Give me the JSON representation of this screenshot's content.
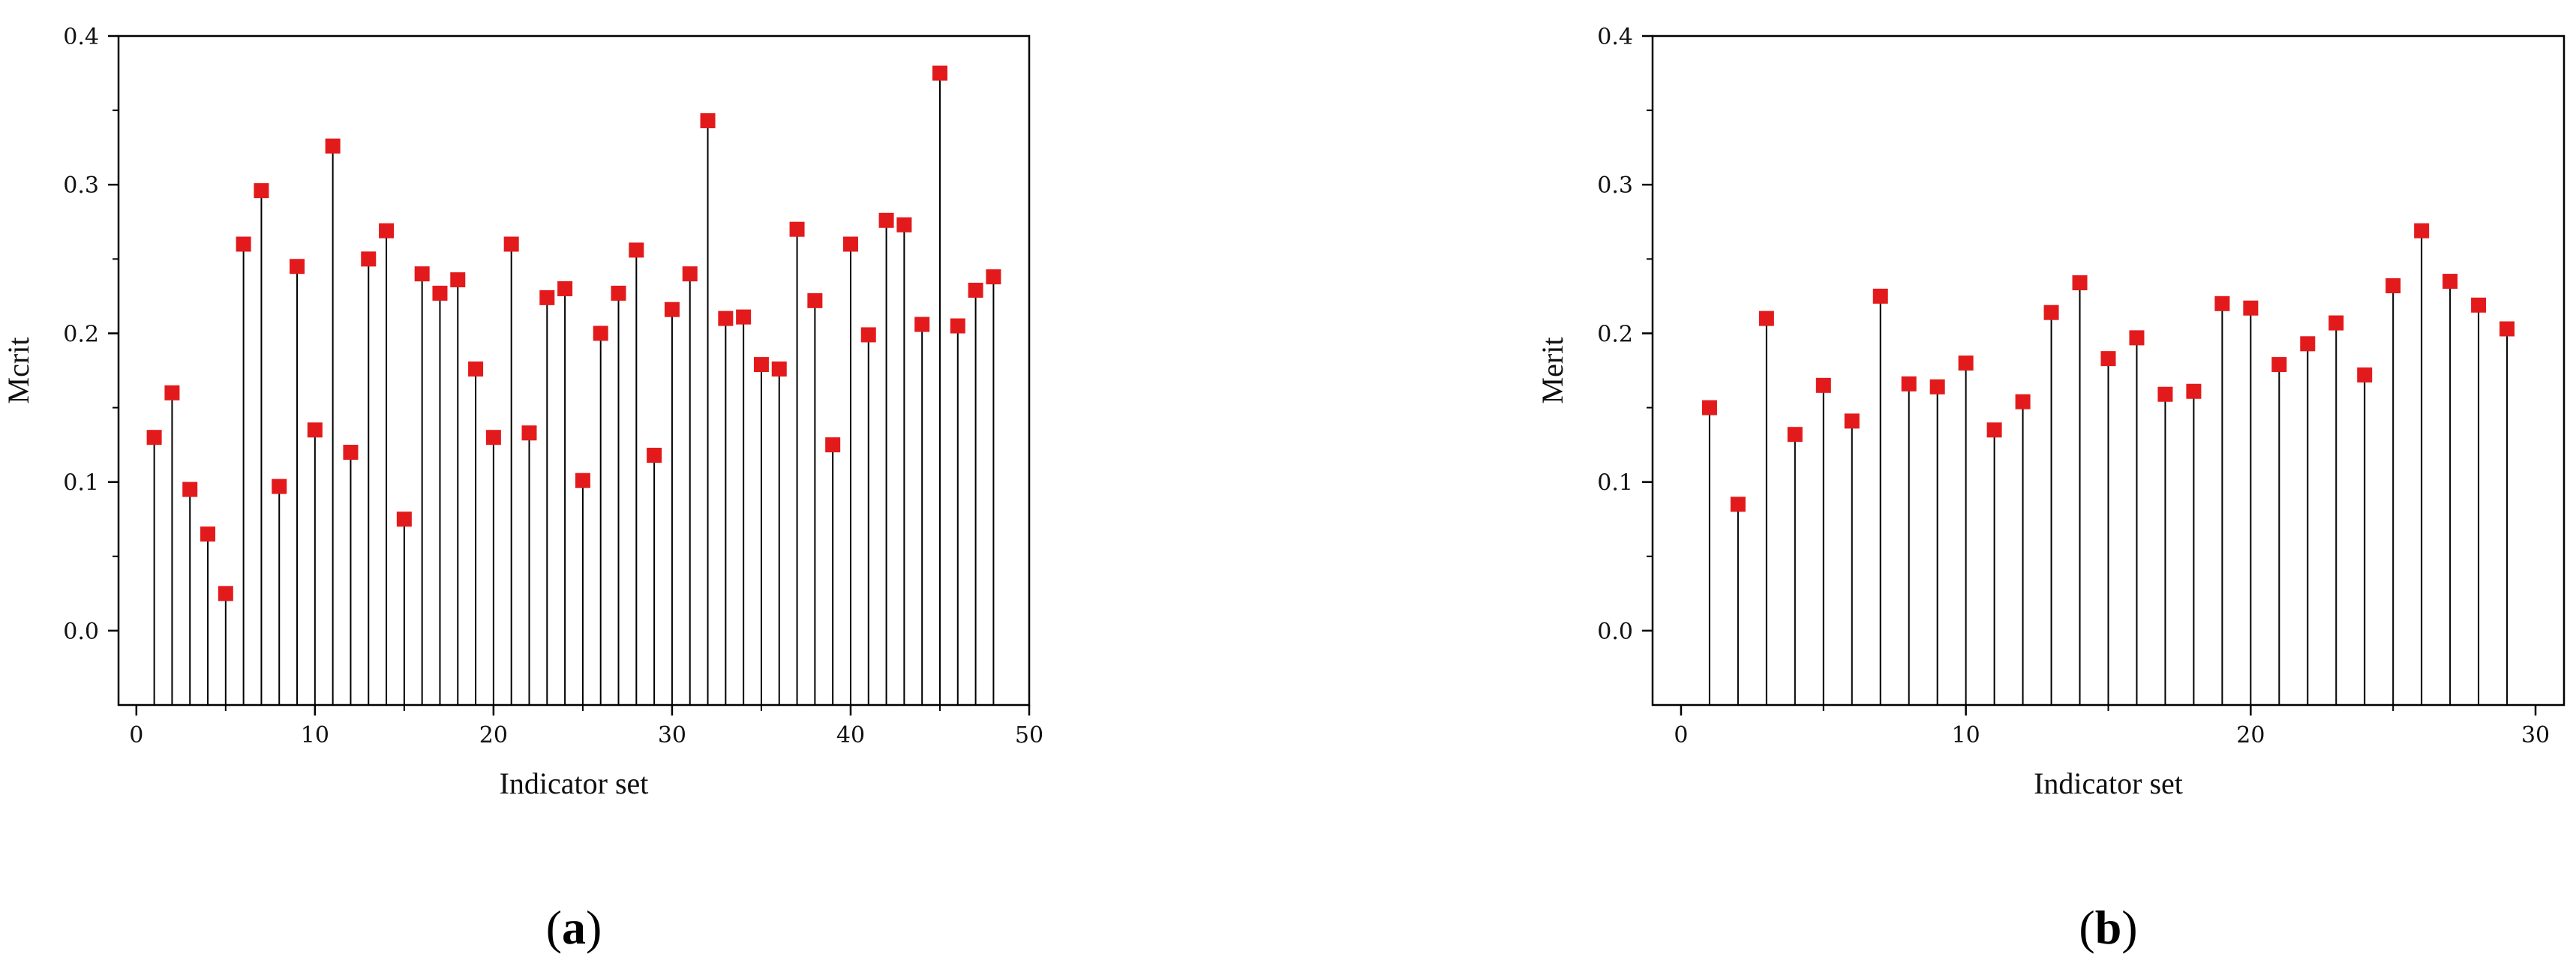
{
  "chart_data": [
    {
      "type": "stem",
      "panel_label": "a",
      "xlabel": "Indicator set",
      "ylabel": "Mcrit",
      "xlim": [
        -1,
        50
      ],
      "ylim": [
        -0.05,
        0.4
      ],
      "xticks": [
        0,
        10,
        20,
        30,
        40,
        50
      ],
      "xtick_labels": [
        "0",
        "10",
        "20",
        "30",
        "40",
        "50"
      ],
      "yticks": [
        0.0,
        0.1,
        0.2,
        0.3,
        0.4
      ],
      "ytick_labels": [
        "0.0",
        "0.1",
        "0.2",
        "0.3",
        "0.4"
      ],
      "marker_color": "#e31a1c",
      "x": [
        1,
        2,
        3,
        4,
        5,
        6,
        7,
        8,
        9,
        10,
        11,
        12,
        13,
        14,
        15,
        16,
        17,
        18,
        19,
        20,
        21,
        22,
        23,
        24,
        25,
        26,
        27,
        28,
        29,
        30,
        31,
        32,
        33,
        34,
        35,
        36,
        37,
        38,
        39,
        40,
        41,
        42,
        43,
        44,
        45,
        46,
        47,
        48
      ],
      "y": [
        0.13,
        0.16,
        0.095,
        0.065,
        0.025,
        0.26,
        0.296,
        0.097,
        0.245,
        0.135,
        0.326,
        0.12,
        0.25,
        0.269,
        0.075,
        0.24,
        0.227,
        0.236,
        0.176,
        0.13,
        0.26,
        0.133,
        0.224,
        0.23,
        0.101,
        0.2,
        0.227,
        0.256,
        0.118,
        0.216,
        0.24,
        0.343,
        0.21,
        0.211,
        0.179,
        0.176,
        0.27,
        0.222,
        0.125,
        0.26,
        0.199,
        0.276,
        0.273,
        0.206,
        0.375,
        0.205,
        0.229,
        0.238
      ]
    },
    {
      "type": "stem",
      "panel_label": "b",
      "xlabel": "Indicator set",
      "ylabel": "Merit",
      "xlim": [
        -1,
        31
      ],
      "ylim": [
        -0.05,
        0.4
      ],
      "xticks": [
        0,
        10,
        20,
        30
      ],
      "xtick_labels": [
        "0",
        "10",
        "20",
        "30"
      ],
      "yticks": [
        0.0,
        0.1,
        0.2,
        0.3,
        0.4
      ],
      "ytick_labels": [
        "0.0",
        "0.1",
        "0.2",
        "0.3",
        "0.4"
      ],
      "marker_color": "#e31a1c",
      "x": [
        1,
        2,
        3,
        4,
        5,
        6,
        7,
        8,
        9,
        10,
        11,
        12,
        13,
        14,
        15,
        16,
        17,
        18,
        19,
        20,
        21,
        22,
        23,
        24,
        25,
        26,
        27,
        28,
        29
      ],
      "y": [
        0.15,
        0.085,
        0.21,
        0.132,
        0.165,
        0.141,
        0.225,
        0.166,
        0.164,
        0.18,
        0.135,
        0.154,
        0.214,
        0.234,
        0.183,
        0.197,
        0.159,
        0.161,
        0.22,
        0.217,
        0.179,
        0.193,
        0.207,
        0.172,
        0.232,
        0.269,
        0.235,
        0.219,
        0.203
      ]
    }
  ]
}
